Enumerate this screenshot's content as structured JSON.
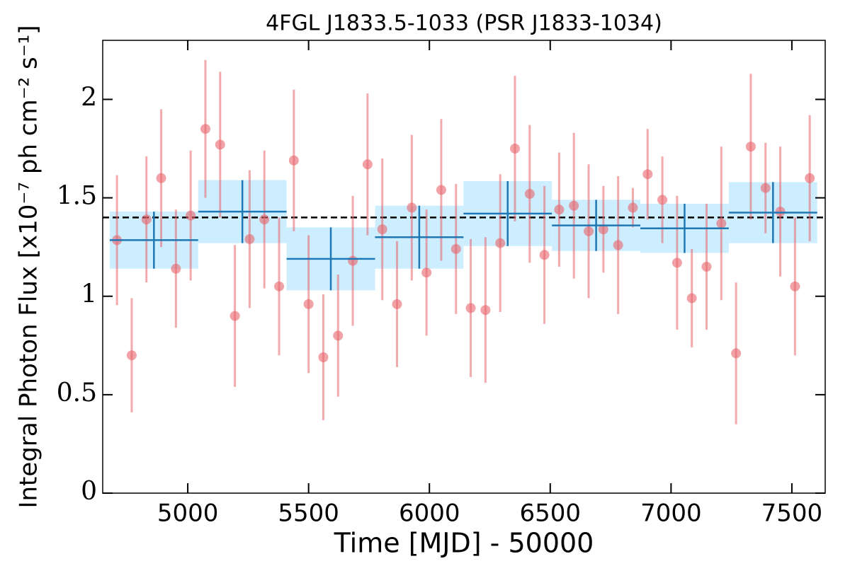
{
  "chart_data": {
    "type": "errorbar",
    "title": "4FGL J1833.5-1033 (PSR J1833-1034)",
    "xlabel": "Time [MJD] - 50000",
    "ylabel": "Integral Photon Flux [x10⁻⁷ ph cm⁻² s⁻¹]",
    "xlim": [
      4648,
      7638
    ],
    "ylim": [
      0,
      2.3
    ],
    "xticks": [
      5000,
      5500,
      6000,
      6500,
      7000,
      7500
    ],
    "yticks": [
      0,
      0.5,
      1,
      1.5,
      2
    ],
    "reference_line": 1.4,
    "reference_color": "#000000",
    "points": {
      "color": "#e8646a",
      "x": [
        4707,
        4768,
        4829,
        4890,
        4951,
        5012,
        5073,
        5134,
        5195,
        5256,
        5317,
        5378,
        5439,
        5500,
        5561,
        5622,
        5683,
        5744,
        5805,
        5866,
        5927,
        5988,
        6049,
        6110,
        6171,
        6232,
        6293,
        6354,
        6415,
        6476,
        6537,
        6598,
        6659,
        6720,
        6781,
        6842,
        6903,
        6964,
        7025,
        7086,
        7147,
        7208,
        7269,
        7330,
        7391,
        7452,
        7513,
        7574
      ],
      "values": [
        1.285,
        0.7,
        1.39,
        1.6,
        1.14,
        1.41,
        1.85,
        1.77,
        0.9,
        1.29,
        1.39,
        1.05,
        1.69,
        0.96,
        0.69,
        0.8,
        1.18,
        1.67,
        1.34,
        0.96,
        1.45,
        1.12,
        1.54,
        1.24,
        0.94,
        0.93,
        1.27,
        1.75,
        1.52,
        1.21,
        1.44,
        1.46,
        1.33,
        1.34,
        1.26,
        1.45,
        1.62,
        1.49,
        1.17,
        0.99,
        1.15,
        1.37,
        0.71,
        1.76,
        1.55,
        1.43,
        1.05,
        1.6
      ],
      "errors": [
        0.33,
        0.29,
        0.32,
        0.35,
        0.3,
        0.33,
        0.35,
        0.37,
        0.36,
        0.35,
        0.35,
        0.35,
        0.36,
        0.35,
        0.32,
        0.31,
        0.33,
        0.36,
        0.36,
        0.32,
        0.37,
        0.32,
        0.36,
        0.33,
        0.35,
        0.37,
        0.35,
        0.37,
        0.35,
        0.35,
        0.29,
        0.37,
        0.34,
        0.22,
        0.35,
        0.1,
        0.23,
        0.22,
        0.34,
        0.25,
        0.32,
        0.39,
        0.36,
        0.37,
        0.23,
        0.33,
        0.35,
        0.32
      ]
    },
    "binned": {
      "color": "#1f77b4",
      "band_color": "#cdeeff",
      "x_error": 183,
      "x": [
        4860,
        5226,
        5592,
        5958,
        6324,
        6690,
        7056,
        7422
      ],
      "values": [
        1.285,
        1.43,
        1.19,
        1.3,
        1.42,
        1.36,
        1.345,
        1.425
      ],
      "errors": [
        0.145,
        0.16,
        0.16,
        0.16,
        0.165,
        0.13,
        0.125,
        0.155
      ]
    }
  }
}
